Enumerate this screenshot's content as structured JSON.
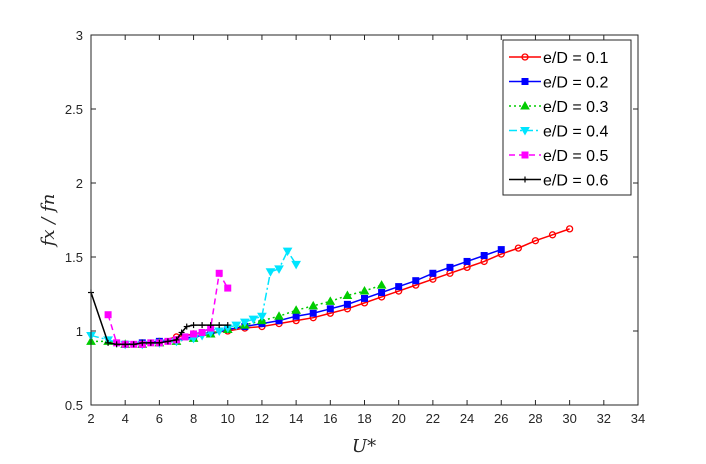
{
  "chart_data": {
    "type": "line",
    "title": "",
    "xlabel": "U*",
    "ylabel": "fx / fn",
    "xlim": [
      2,
      34
    ],
    "ylim": [
      0.5,
      3
    ],
    "xticks": [
      "2",
      "4",
      "6",
      "8",
      "10",
      "12",
      "14",
      "16",
      "18",
      "20",
      "22",
      "24",
      "26",
      "28",
      "30",
      "32",
      "34"
    ],
    "yticks": [
      "0.5",
      "1",
      "1.5",
      "2",
      "2.5",
      "3"
    ],
    "grid": false,
    "legend_position": "top-right",
    "series": [
      {
        "name": "e/D = 0.1",
        "color": "#ff0000",
        "line_style": "solid",
        "marker": "circle",
        "x": [
          4,
          5,
          6,
          7,
          8,
          9,
          10,
          11,
          12,
          13,
          14,
          15,
          16,
          17,
          18,
          19,
          20,
          21,
          22,
          23,
          24,
          25,
          26,
          27,
          28,
          29,
          30
        ],
        "y": [
          0.91,
          0.92,
          0.93,
          0.96,
          0.98,
          0.99,
          1.0,
          1.02,
          1.03,
          1.05,
          1.07,
          1.09,
          1.12,
          1.15,
          1.19,
          1.23,
          1.27,
          1.31,
          1.35,
          1.39,
          1.43,
          1.47,
          1.52,
          1.56,
          1.61,
          1.65,
          1.69
        ]
      },
      {
        "name": "e/D = 0.2",
        "color": "#0000ff",
        "line_style": "solid",
        "marker": "square",
        "x": [
          4,
          5,
          6,
          7,
          8,
          9,
          10,
          11,
          12,
          13,
          14,
          15,
          16,
          17,
          18,
          19,
          20,
          21,
          22,
          23,
          24,
          25,
          26
        ],
        "y": [
          0.91,
          0.92,
          0.93,
          0.94,
          0.96,
          0.98,
          1.01,
          1.03,
          1.05,
          1.07,
          1.1,
          1.12,
          1.15,
          1.18,
          1.22,
          1.26,
          1.3,
          1.34,
          1.39,
          1.43,
          1.47,
          1.51,
          1.55
        ]
      },
      {
        "name": "e/D = 0.3",
        "color": "#00cc00",
        "line_style": "dotted",
        "marker": "triangle-up",
        "x": [
          2,
          3,
          4,
          5,
          6,
          7,
          8,
          9,
          10,
          11,
          12,
          13,
          14,
          15,
          16,
          17,
          18,
          19
        ],
        "y": [
          0.93,
          0.93,
          0.91,
          0.91,
          0.92,
          0.93,
          0.95,
          0.98,
          1.01,
          1.04,
          1.07,
          1.1,
          1.14,
          1.17,
          1.2,
          1.24,
          1.27,
          1.31
        ]
      },
      {
        "name": "e/D = 0.4",
        "color": "#00e5ff",
        "line_style": "dash-dot",
        "marker": "triangle-down",
        "x": [
          2,
          3,
          4,
          5,
          6,
          7,
          8,
          8.5,
          9,
          9.5,
          10,
          10.5,
          11,
          11.5,
          12,
          12.5,
          13,
          13.5,
          14
        ],
        "y": [
          0.97,
          0.94,
          0.91,
          0.91,
          0.92,
          0.93,
          0.95,
          0.97,
          0.99,
          1.0,
          1.02,
          1.04,
          1.06,
          1.08,
          1.1,
          1.4,
          1.42,
          1.54,
          1.45
        ]
      },
      {
        "name": "e/D = 0.5",
        "color": "#ff00ff",
        "line_style": "dashed",
        "marker": "square",
        "x": [
          3,
          3.5,
          4,
          4.5,
          5,
          5.5,
          6,
          6.5,
          7,
          7.5,
          8,
          8.5,
          9,
          9.5,
          10
        ],
        "y": [
          1.11,
          0.92,
          0.91,
          0.91,
          0.91,
          0.92,
          0.92,
          0.93,
          0.94,
          0.96,
          0.98,
          0.99,
          1.02,
          1.39,
          1.29
        ]
      },
      {
        "name": "e/D = 0.6",
        "color": "#000000",
        "line_style": "solid",
        "marker": "plus",
        "x": [
          2,
          3,
          3.5,
          4,
          4.5,
          5,
          5.5,
          6,
          6.5,
          7,
          7.3,
          7.6,
          8,
          8.5,
          9,
          9.5,
          10
        ],
        "y": [
          1.26,
          0.92,
          0.91,
          0.91,
          0.91,
          0.92,
          0.92,
          0.92,
          0.93,
          0.94,
          0.99,
          1.03,
          1.04,
          1.04,
          1.04,
          1.04,
          1.04
        ]
      }
    ]
  }
}
